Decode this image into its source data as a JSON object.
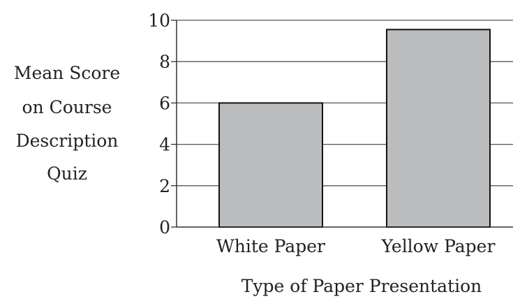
{
  "chart_data": {
    "type": "bar",
    "categories": [
      "White Paper",
      "Yellow Paper"
    ],
    "values": [
      6.0,
      9.55
    ],
    "xlabel": "Type of Paper Presentation",
    "ylabel_lines": [
      "Mean Score",
      "on Course",
      "Description",
      "Quiz"
    ],
    "ylim": [
      0,
      10
    ],
    "yticks": [
      "0",
      "2",
      "4",
      "6",
      "8",
      "10"
    ],
    "grid": true,
    "legend": "none",
    "colors": {
      "bar_fill": "#bbbcbe",
      "bar_stroke": "#111111",
      "grid": "#555555",
      "axis": "#333333",
      "text": "#222222"
    }
  }
}
